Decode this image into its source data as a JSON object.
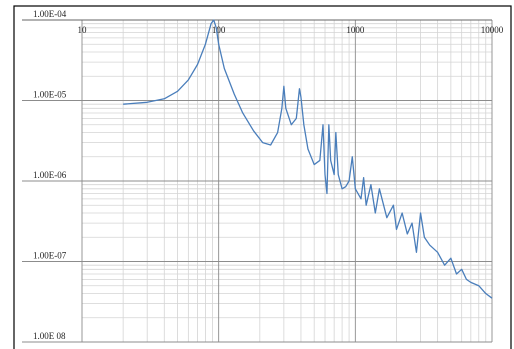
{
  "chart_data": {
    "type": "line",
    "x": [
      20,
      30,
      40,
      50,
      60,
      70,
      80,
      88,
      92,
      96,
      100,
      110,
      130,
      150,
      180,
      210,
      240,
      270,
      290,
      300,
      310,
      340,
      370,
      390,
      400,
      420,
      450,
      500,
      550,
      580,
      600,
      620,
      640,
      660,
      700,
      720,
      750,
      800,
      850,
      900,
      950,
      1000,
      1100,
      1150,
      1200,
      1300,
      1400,
      1500,
      1700,
      1900,
      2000,
      2200,
      2400,
      2600,
      2800,
      3000,
      3200,
      3500,
      4000,
      4500,
      5000,
      5500,
      6000,
      6500,
      7000,
      8000,
      9000,
      10000
    ],
    "series": [
      {
        "color": "#4a7ebb",
        "values": [
          9e-06,
          9.5e-06,
          1.05e-05,
          1.3e-05,
          1.8e-05,
          2.8e-05,
          5e-05,
          9e-05,
          0.0001,
          8e-05,
          5e-05,
          2.5e-05,
          1.2e-05,
          7e-06,
          4.2e-06,
          3e-06,
          2.8e-06,
          4e-06,
          8e-06,
          1.5e-05,
          8e-06,
          5e-06,
          6e-06,
          1.4e-05,
          1.1e-05,
          5e-06,
          2.5e-06,
          1.6e-06,
          1.8e-06,
          5e-06,
          1.2e-06,
          7e-07,
          5e-06,
          1.8e-06,
          1.2e-06,
          4e-06,
          1.2e-06,
          8e-07,
          8.5e-07,
          1e-06,
          2e-06,
          8e-07,
          6e-07,
          1.1e-06,
          5e-07,
          9e-07,
          4e-07,
          8e-07,
          3.5e-07,
          5e-07,
          2.5e-07,
          4e-07,
          2.2e-07,
          3e-07,
          1.3e-07,
          4e-07,
          2e-07,
          1.6e-07,
          1.3e-07,
          9e-08,
          1.1e-07,
          7e-08,
          8e-08,
          6e-08,
          5.5e-08,
          5e-08,
          4e-08,
          3.5e-08
        ]
      }
    ],
    "xlim": [
      10,
      10000
    ],
    "xticks": [
      10,
      100,
      1000,
      10000
    ],
    "ylim": [
      1e-08,
      0.0001
    ],
    "yticks": [
      {
        "value": 1e-08,
        "label": "1.00E 08"
      },
      {
        "value": 1e-07,
        "label": "1.00E-07"
      },
      {
        "value": 1e-06,
        "label": "1.00E-06"
      },
      {
        "value": 1e-05,
        "label": "1.00E-05"
      },
      {
        "value": 0.0001,
        "label": "1.00E-04"
      }
    ],
    "xscale": "log",
    "yscale": "log",
    "grid": true,
    "minor_grid": true
  }
}
